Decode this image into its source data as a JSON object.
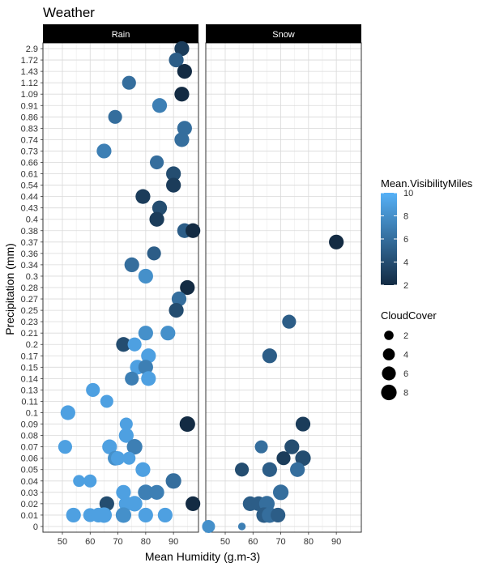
{
  "chart_data": {
    "type": "scatter",
    "title": "Weather",
    "xlabel": "Mean Humidity (g.m-3)",
    "ylabel": "Precipitation (mm)",
    "xlim": [
      43,
      99
    ],
    "x_ticks": [
      50,
      60,
      70,
      80,
      90
    ],
    "y_categories": [
      "0",
      "0.01",
      "0.02",
      "0.03",
      "0.04",
      "0.05",
      "0.06",
      "0.07",
      "0.08",
      "0.09",
      "0.1",
      "0.11",
      "0.13",
      "0.14",
      "0.15",
      "0.17",
      "0.2",
      "0.21",
      "0.23",
      "0.25",
      "0.27",
      "0.28",
      "0.3",
      "0.34",
      "0.36",
      "0.37",
      "0.38",
      "0.4",
      "0.43",
      "0.44",
      "0.54",
      "0.61",
      "0.66",
      "0.73",
      "0.74",
      "0.83",
      "0.86",
      "0.91",
      "1.09",
      "1.12",
      "1.43",
      "1.72",
      "2.9"
    ],
    "y_scale": "discrete",
    "grid": true,
    "facets": [
      "Rain",
      "Snow"
    ],
    "legend_position": "right",
    "color_legend": {
      "title": "Mean.VisibilityMiles",
      "min": 2,
      "max": 10,
      "ticks": [
        2,
        4,
        6,
        8,
        10
      ],
      "low_color": "#132B43",
      "high_color": "#56B1F7"
    },
    "size_legend": {
      "title": "CloudCover",
      "values": [
        2,
        4,
        6,
        8
      ]
    },
    "series": [
      {
        "facet": "Rain",
        "points": [
          {
            "x": 93,
            "y": "2.9",
            "vis": 3,
            "cloud": 7
          },
          {
            "x": 91,
            "y": "1.72",
            "vis": 5,
            "cloud": 7
          },
          {
            "x": 94,
            "y": "1.43",
            "vis": 2,
            "cloud": 7
          },
          {
            "x": 74,
            "y": "1.12",
            "vis": 6,
            "cloud": 6
          },
          {
            "x": 93,
            "y": "1.09",
            "vis": 2,
            "cloud": 7
          },
          {
            "x": 85,
            "y": "0.91",
            "vis": 7,
            "cloud": 7
          },
          {
            "x": 69,
            "y": "0.86",
            "vis": 6,
            "cloud": 6
          },
          {
            "x": 94,
            "y": "0.83",
            "vis": 6,
            "cloud": 7
          },
          {
            "x": 93,
            "y": "0.74",
            "vis": 6,
            "cloud": 7
          },
          {
            "x": 65,
            "y": "0.73",
            "vis": 7,
            "cloud": 7
          },
          {
            "x": 84,
            "y": "0.66",
            "vis": 6,
            "cloud": 6
          },
          {
            "x": 90,
            "y": "0.61",
            "vis": 4,
            "cloud": 7
          },
          {
            "x": 90,
            "y": "0.54",
            "vis": 3,
            "cloud": 7
          },
          {
            "x": 79,
            "y": "0.44",
            "vis": 3,
            "cloud": 7
          },
          {
            "x": 85,
            "y": "0.43",
            "vis": 4,
            "cloud": 7
          },
          {
            "x": 84,
            "y": "0.4",
            "vis": 3,
            "cloud": 7
          },
          {
            "x": 94,
            "y": "0.38",
            "vis": 5,
            "cloud": 7
          },
          {
            "x": 97,
            "y": "0.38",
            "vis": 2,
            "cloud": 7
          },
          {
            "x": 83,
            "y": "0.36",
            "vis": 5,
            "cloud": 6
          },
          {
            "x": 75,
            "y": "0.34",
            "vis": 6,
            "cloud": 7
          },
          {
            "x": 80,
            "y": "0.3",
            "vis": 8,
            "cloud": 7
          },
          {
            "x": 95,
            "y": "0.28",
            "vis": 2,
            "cloud": 7
          },
          {
            "x": 92,
            "y": "0.27",
            "vis": 6,
            "cloud": 7
          },
          {
            "x": 91,
            "y": "0.25",
            "vis": 4,
            "cloud": 7
          },
          {
            "x": 80,
            "y": "0.21",
            "vis": 8,
            "cloud": 7
          },
          {
            "x": 88,
            "y": "0.21",
            "vis": 8,
            "cloud": 7
          },
          {
            "x": 72,
            "y": "0.2",
            "vis": 4,
            "cloud": 7
          },
          {
            "x": 76,
            "y": "0.2",
            "vis": 9,
            "cloud": 6
          },
          {
            "x": 81,
            "y": "0.17",
            "vis": 9,
            "cloud": 7
          },
          {
            "x": 77,
            "y": "0.15",
            "vis": 9,
            "cloud": 7
          },
          {
            "x": 80,
            "y": "0.15",
            "vis": 7,
            "cloud": 7
          },
          {
            "x": 75,
            "y": "0.14",
            "vis": 7,
            "cloud": 6
          },
          {
            "x": 81,
            "y": "0.14",
            "vis": 9,
            "cloud": 7
          },
          {
            "x": 61,
            "y": "0.13",
            "vis": 9,
            "cloud": 6
          },
          {
            "x": 66,
            "y": "0.11",
            "vis": 9,
            "cloud": 5
          },
          {
            "x": 52,
            "y": "0.1",
            "vis": 9,
            "cloud": 7
          },
          {
            "x": 73,
            "y": "0.09",
            "vis": 9,
            "cloud": 5
          },
          {
            "x": 95,
            "y": "0.09",
            "vis": 2,
            "cloud": 8
          },
          {
            "x": 73,
            "y": "0.08",
            "vis": 9,
            "cloud": 7
          },
          {
            "x": 51,
            "y": "0.07",
            "vis": 9,
            "cloud": 6
          },
          {
            "x": 67,
            "y": "0.07",
            "vis": 9,
            "cloud": 7
          },
          {
            "x": 76,
            "y": "0.07",
            "vis": 7,
            "cloud": 8
          },
          {
            "x": 69,
            "y": "0.06",
            "vis": 8,
            "cloud": 7
          },
          {
            "x": 70,
            "y": "0.06",
            "vis": 9,
            "cloud": 6
          },
          {
            "x": 74,
            "y": "0.06",
            "vis": 9,
            "cloud": 5
          },
          {
            "x": 79,
            "y": "0.05",
            "vis": 9,
            "cloud": 7
          },
          {
            "x": 56,
            "y": "0.04",
            "vis": 9,
            "cloud": 4
          },
          {
            "x": 60,
            "y": "0.04",
            "vis": 9,
            "cloud": 5
          },
          {
            "x": 90,
            "y": "0.04",
            "vis": 6,
            "cloud": 8
          },
          {
            "x": 72,
            "y": "0.03",
            "vis": 9,
            "cloud": 7
          },
          {
            "x": 80,
            "y": "0.03",
            "vis": 7,
            "cloud": 8
          },
          {
            "x": 84,
            "y": "0.03",
            "vis": 7,
            "cloud": 7
          },
          {
            "x": 66,
            "y": "0.02",
            "vis": 4,
            "cloud": 7
          },
          {
            "x": 73,
            "y": "0.02",
            "vis": 9,
            "cloud": 7
          },
          {
            "x": 76,
            "y": "0.02",
            "vis": 9,
            "cloud": 8
          },
          {
            "x": 97,
            "y": "0.02",
            "vis": 2,
            "cloud": 7
          },
          {
            "x": 54,
            "y": "0.01",
            "vis": 9,
            "cloud": 7
          },
          {
            "x": 60,
            "y": "0.01",
            "vis": 9,
            "cloud": 6
          },
          {
            "x": 63,
            "y": "0.01",
            "vis": 9,
            "cloud": 7
          },
          {
            "x": 65,
            "y": "0.01",
            "vis": 9,
            "cloud": 8
          },
          {
            "x": 72,
            "y": "0.01",
            "vis": 8,
            "cloud": 8
          },
          {
            "x": 80,
            "y": "0.01",
            "vis": 9,
            "cloud": 7
          },
          {
            "x": 87,
            "y": "0.01",
            "vis": 9,
            "cloud": 7
          }
        ]
      },
      {
        "facet": "Snow",
        "points": [
          {
            "x": 90,
            "y": "0.37",
            "vis": 2,
            "cloud": 7
          },
          {
            "x": 73,
            "y": "0.23",
            "vis": 5,
            "cloud": 6
          },
          {
            "x": 66,
            "y": "0.17",
            "vis": 5,
            "cloud": 7
          },
          {
            "x": 78,
            "y": "0.09",
            "vis": 3,
            "cloud": 7
          },
          {
            "x": 74,
            "y": "0.07",
            "vis": 4,
            "cloud": 7
          },
          {
            "x": 63,
            "y": "0.07",
            "vis": 6,
            "cloud": 5
          },
          {
            "x": 71,
            "y": "0.06",
            "vis": 3,
            "cloud": 6
          },
          {
            "x": 78,
            "y": "0.06",
            "vis": 4,
            "cloud": 8
          },
          {
            "x": 56,
            "y": "0.05",
            "vis": 4,
            "cloud": 6
          },
          {
            "x": 66,
            "y": "0.05",
            "vis": 5,
            "cloud": 7
          },
          {
            "x": 76,
            "y": "0.05",
            "vis": 6,
            "cloud": 7
          },
          {
            "x": 70,
            "y": "0.03",
            "vis": 6,
            "cloud": 8
          },
          {
            "x": 59,
            "y": "0.02",
            "vis": 5,
            "cloud": 7
          },
          {
            "x": 62,
            "y": "0.02",
            "vis": 5,
            "cloud": 7
          },
          {
            "x": 65,
            "y": "0.02",
            "vis": 6,
            "cloud": 8
          },
          {
            "x": 64,
            "y": "0.01",
            "vis": 5,
            "cloud": 8
          },
          {
            "x": 66,
            "y": "0.01",
            "vis": 6,
            "cloud": 8
          },
          {
            "x": 69,
            "y": "0.01",
            "vis": 5,
            "cloud": 7
          },
          {
            "x": 44,
            "y": "0",
            "vis": 8,
            "cloud": 5
          },
          {
            "x": 56,
            "y": "0",
            "vis": 7,
            "cloud": 1
          }
        ]
      }
    ]
  }
}
